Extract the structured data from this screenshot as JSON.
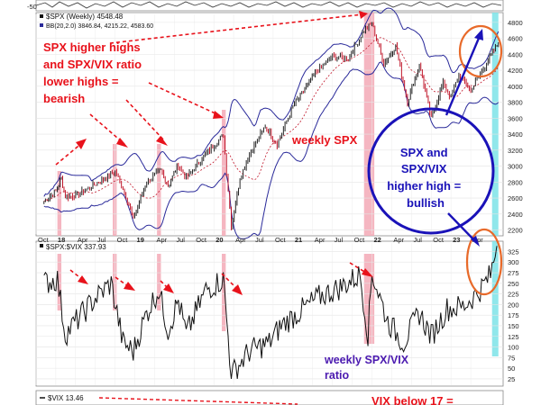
{
  "chart_data": [
    {
      "type": "line",
      "name_label": "$SPX (Weekly)",
      "last_value": "4548.48",
      "bb_label": "BB(20,2.0)",
      "bb_values": [
        "3846.84",
        "4215.22",
        "4583.60"
      ],
      "x_tick_labels": [
        "Oct",
        "18",
        "Apr",
        "Jul",
        "Oct",
        "19",
        "Apr",
        "Jul",
        "Oct",
        "20",
        "Apr",
        "Jul",
        "Oct",
        "21",
        "Apr",
        "Jul",
        "Oct",
        "22",
        "Apr",
        "Jul",
        "Oct",
        "23",
        "Apr"
      ],
      "y_ticks": [
        2200,
        2400,
        2600,
        2800,
        3000,
        3200,
        3400,
        3600,
        3800,
        4000,
        4200,
        4400,
        4600,
        4800
      ],
      "ylim": [
        2150,
        4900
      ],
      "series": [
        {
          "values": [
            {
              "x": 2017.85,
              "y": 2560
            },
            {
              "x": 2018.0,
              "y": 2690
            },
            {
              "x": 2018.07,
              "y": 2850
            },
            {
              "x": 2018.12,
              "y": 2620
            },
            {
              "x": 2018.25,
              "y": 2630
            },
            {
              "x": 2018.45,
              "y": 2740
            },
            {
              "x": 2018.75,
              "y": 2930
            },
            {
              "x": 2018.85,
              "y": 2720
            },
            {
              "x": 2018.98,
              "y": 2350
            },
            {
              "x": 2019.15,
              "y": 2800
            },
            {
              "x": 2019.33,
              "y": 2950
            },
            {
              "x": 2019.42,
              "y": 2750
            },
            {
              "x": 2019.55,
              "y": 3020
            },
            {
              "x": 2019.65,
              "y": 2850
            },
            {
              "x": 2019.85,
              "y": 3100
            },
            {
              "x": 2020.12,
              "y": 3390
            },
            {
              "x": 2020.22,
              "y": 2240
            },
            {
              "x": 2020.33,
              "y": 2850
            },
            {
              "x": 2020.45,
              "y": 3150
            },
            {
              "x": 2020.65,
              "y": 3500
            },
            {
              "x": 2020.8,
              "y": 3270
            },
            {
              "x": 2021.0,
              "y": 3750
            },
            {
              "x": 2021.3,
              "y": 4180
            },
            {
              "x": 2021.5,
              "y": 4380
            },
            {
              "x": 2021.7,
              "y": 4350
            },
            {
              "x": 2021.9,
              "y": 4700
            },
            {
              "x": 2022.0,
              "y": 4790
            },
            {
              "x": 2022.15,
              "y": 4280
            },
            {
              "x": 2022.3,
              "y": 4500
            },
            {
              "x": 2022.45,
              "y": 3800
            },
            {
              "x": 2022.6,
              "y": 4280
            },
            {
              "x": 2022.75,
              "y": 3590
            },
            {
              "x": 2022.9,
              "y": 4050
            },
            {
              "x": 2023.0,
              "y": 3850
            },
            {
              "x": 2023.1,
              "y": 4150
            },
            {
              "x": 2023.25,
              "y": 3950
            },
            {
              "x": 2023.45,
              "y": 4290
            },
            {
              "x": 2023.6,
              "y": 4550
            }
          ]
        }
      ]
    },
    {
      "type": "line",
      "name_label": "$SPX:$VIX",
      "last_value": "337.93",
      "y_ticks": [
        25,
        50,
        75,
        100,
        125,
        150,
        175,
        200,
        225,
        250,
        275,
        300,
        325
      ],
      "ylim": [
        10,
        345
      ],
      "series": [
        {
          "values": [
            {
              "x": 2017.85,
              "y": 250
            },
            {
              "x": 2018.02,
              "y": 260
            },
            {
              "x": 2018.12,
              "y": 130
            },
            {
              "x": 2018.3,
              "y": 170
            },
            {
              "x": 2018.5,
              "y": 215
            },
            {
              "x": 2018.7,
              "y": 250
            },
            {
              "x": 2018.85,
              "y": 110
            },
            {
              "x": 2018.98,
              "y": 90
            },
            {
              "x": 2019.15,
              "y": 180
            },
            {
              "x": 2019.3,
              "y": 235
            },
            {
              "x": 2019.42,
              "y": 140
            },
            {
              "x": 2019.55,
              "y": 210
            },
            {
              "x": 2019.65,
              "y": 130
            },
            {
              "x": 2019.9,
              "y": 235
            },
            {
              "x": 2020.12,
              "y": 260
            },
            {
              "x": 2020.22,
              "y": 35
            },
            {
              "x": 2020.45,
              "y": 90
            },
            {
              "x": 2020.7,
              "y": 110
            },
            {
              "x": 2020.85,
              "y": 150
            },
            {
              "x": 2021.1,
              "y": 185
            },
            {
              "x": 2021.35,
              "y": 220
            },
            {
              "x": 2021.6,
              "y": 240
            },
            {
              "x": 2021.85,
              "y": 270
            },
            {
              "x": 2021.95,
              "y": 130
            },
            {
              "x": 2022.0,
              "y": 275
            },
            {
              "x": 2022.2,
              "y": 160
            },
            {
              "x": 2022.4,
              "y": 110
            },
            {
              "x": 2022.6,
              "y": 180
            },
            {
              "x": 2022.75,
              "y": 125
            },
            {
              "x": 2022.95,
              "y": 190
            },
            {
              "x": 2023.15,
              "y": 195
            },
            {
              "x": 2023.35,
              "y": 230
            },
            {
              "x": 2023.5,
              "y": 270
            },
            {
              "x": 2023.58,
              "y": 338
            }
          ]
        }
      ]
    },
    {
      "type": "line",
      "name_label": "$VIX",
      "last_value": "13.46"
    }
  ],
  "annotations": {
    "bearish_lines": [
      "SPX higher highs",
      "and SPX/VIX ratio",
      "lower highs =",
      "bearish"
    ],
    "weekly_spx": "weekly SPX",
    "bullish_lines": [
      "SPX and",
      "SPX/VIX",
      "higher high =",
      "bullish"
    ],
    "ratio_lines": [
      "weekly SPX/VIX",
      "ratio"
    ],
    "vix_partial": "VIX below 17 ="
  },
  "top_axis_label": "-50",
  "colors": {
    "red": "#e8121b",
    "blue": "#1a12b8",
    "purple": "#4b1ab0",
    "highlight_red": "#f3a9b6",
    "highlight_cyan": "#7de3e8"
  }
}
